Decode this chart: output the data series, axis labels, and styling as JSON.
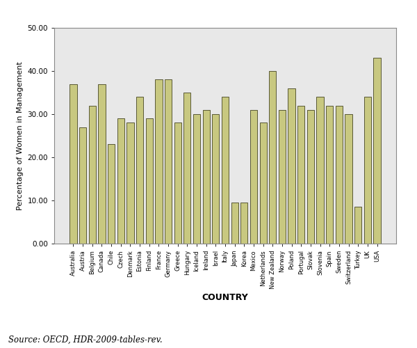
{
  "countries": [
    "Australia",
    "Austria",
    "Belgium",
    "Canada",
    "Chile",
    "Czech",
    "Denmark",
    "Estonia",
    "Finland",
    "France",
    "Germany",
    "Greece",
    "Hungary",
    "Iceland",
    "Ireland",
    "Israel",
    "Italy",
    "Japan",
    "Korea",
    "Mexico",
    "Netherlands",
    "New Zealand",
    "Norway",
    "Poland",
    "Portugal",
    "Slovak",
    "Slovenia",
    "Spain",
    "Sweden",
    "Switzerland",
    "Turkey",
    "UK",
    "USA"
  ],
  "values": [
    37.0,
    27.0,
    32.0,
    37.0,
    23.0,
    29.0,
    28.0,
    34.0,
    29.0,
    38.0,
    38.0,
    28.0,
    35.0,
    30.0,
    31.0,
    30.0,
    34.0,
    9.5,
    9.5,
    31.0,
    28.0,
    40.0,
    31.0,
    36.0,
    32.0,
    31.0,
    34.0,
    32.0,
    32.0,
    30.0,
    8.5,
    34.0,
    43.0
  ],
  "bar_color": "#c8c880",
  "bar_edge_color": "#444422",
  "bar_edge_width": 0.6,
  "plot_area_color": "#e8e8e8",
  "fig_background": "#ffffff",
  "ylabel": "Percentage of Women in Management",
  "xlabel": "COUNTRY",
  "ylim": [
    0,
    50
  ],
  "yticks": [
    0.0,
    10.0,
    20.0,
    30.0,
    40.0,
    50.0
  ],
  "ytick_labels": [
    "0.00",
    "10.00",
    "20.00",
    "30.00",
    "40.00",
    "50.00"
  ],
  "source_text": "Source: OECD, HDR-2009-tables-rev.",
  "xlabel_fontsize": 9,
  "ylabel_fontsize": 8,
  "ytick_fontsize": 7.5,
  "xtick_fontsize": 6,
  "source_fontsize": 8.5
}
